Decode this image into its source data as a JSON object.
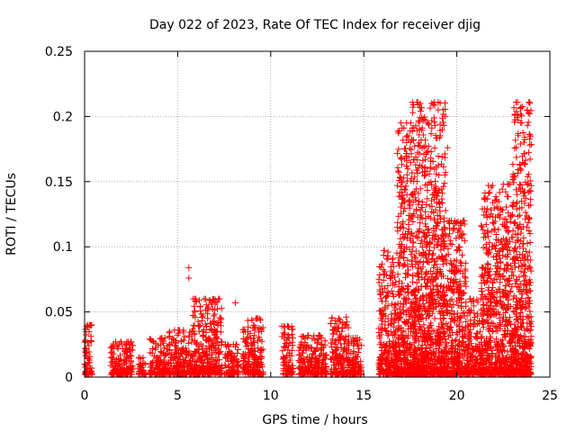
{
  "chart_data": {
    "type": "scatter",
    "title": "Day 022 of 2023, Rate Of TEC Index for receiver djig",
    "xlabel": "GPS time / hours",
    "ylabel": "ROTI / TECUs",
    "xlim": [
      0,
      25
    ],
    "ylim": [
      0,
      0.25
    ],
    "xticks": [
      0,
      5,
      10,
      15,
      20,
      25
    ],
    "yticks": [
      0,
      0.05,
      0.1,
      0.15,
      0.2,
      0.25
    ],
    "ytick_labels": [
      "0",
      "0.05",
      "0.1",
      "0.15",
      "0.2",
      "0.25"
    ],
    "grid": true,
    "marker": "+",
    "color": "#ff0000",
    "activity_envelope": [
      {
        "x_start": 0.0,
        "x_end": 0.4,
        "y_max": 0.04
      },
      {
        "x_start": 1.4,
        "x_end": 2.6,
        "y_max": 0.027
      },
      {
        "x_start": 2.9,
        "x_end": 3.3,
        "y_max": 0.015
      },
      {
        "x_start": 3.5,
        "x_end": 4.5,
        "y_max": 0.03
      },
      {
        "x_start": 4.5,
        "x_end": 5.8,
        "y_max": 0.036
      },
      {
        "x_start": 5.8,
        "x_end": 7.4,
        "y_max": 0.06
      },
      {
        "x_start": 7.5,
        "x_end": 8.3,
        "y_max": 0.025
      },
      {
        "x_start": 8.5,
        "x_end": 9.6,
        "y_max": 0.045
      },
      {
        "x_start": 10.6,
        "x_end": 11.2,
        "y_max": 0.039
      },
      {
        "x_start": 11.5,
        "x_end": 13.0,
        "y_max": 0.032
      },
      {
        "x_start": 13.2,
        "x_end": 14.2,
        "y_max": 0.046
      },
      {
        "x_start": 14.2,
        "x_end": 14.9,
        "y_max": 0.03
      },
      {
        "x_start": 15.8,
        "x_end": 16.8,
        "y_max": 0.097
      },
      {
        "x_start": 16.8,
        "x_end": 17.6,
        "y_max": 0.195
      },
      {
        "x_start": 17.6,
        "x_end": 19.4,
        "y_max": 0.211
      },
      {
        "x_start": 19.4,
        "x_end": 20.5,
        "y_max": 0.12
      },
      {
        "x_start": 20.5,
        "x_end": 21.3,
        "y_max": 0.06
      },
      {
        "x_start": 21.3,
        "x_end": 22.2,
        "y_max": 0.147
      },
      {
        "x_start": 22.2,
        "x_end": 23.0,
        "y_max": 0.148
      },
      {
        "x_start": 23.0,
        "x_end": 24.0,
        "y_max": 0.211
      }
    ],
    "notable_points": [
      {
        "x": 5.6,
        "y": 0.084
      },
      {
        "x": 5.6,
        "y": 0.076
      },
      {
        "x": 8.1,
        "y": 0.057
      },
      {
        "x": 0.1,
        "y": 0.039
      },
      {
        "x": 10.6,
        "y": 0.039
      },
      {
        "x": 16.3,
        "y": 0.096
      },
      {
        "x": 17.3,
        "y": 0.195
      },
      {
        "x": 17.3,
        "y": 0.18
      },
      {
        "x": 19.0,
        "y": 0.211
      },
      {
        "x": 19.0,
        "y": 0.205
      },
      {
        "x": 19.1,
        "y": 0.194
      },
      {
        "x": 19.5,
        "y": 0.176
      },
      {
        "x": 21.7,
        "y": 0.147
      },
      {
        "x": 22.5,
        "y": 0.148
      },
      {
        "x": 23.9,
        "y": 0.211
      },
      {
        "x": 23.9,
        "y": 0.202
      },
      {
        "x": 23.9,
        "y": 0.186
      },
      {
        "x": 23.9,
        "y": 0.143
      }
    ]
  }
}
